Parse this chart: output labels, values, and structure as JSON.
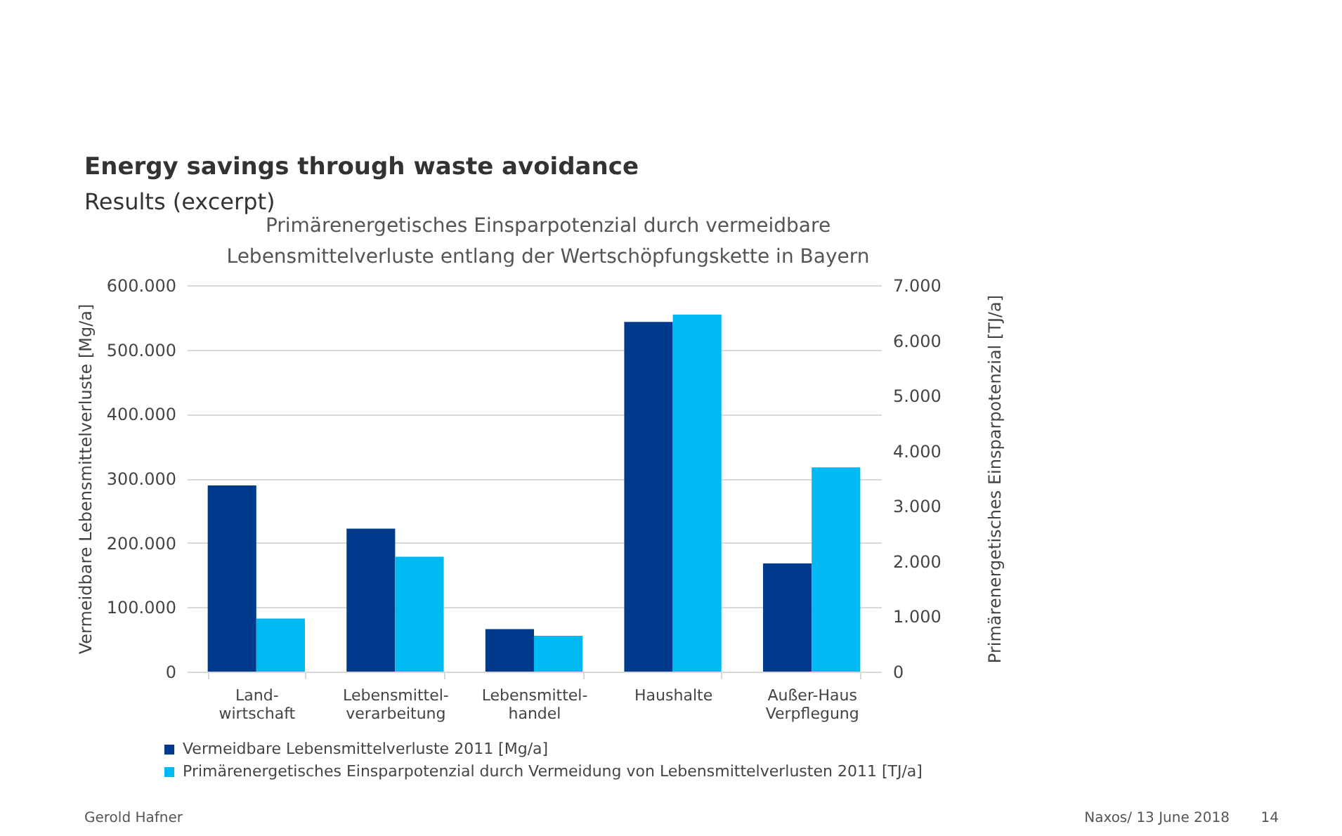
{
  "chart_data": {
    "type": "bar",
    "title": "Energy savings through waste avoidance",
    "subtitle": "Results (excerpt)",
    "categories": [
      "Land-\nwirtschaft",
      "Lebensmittel-\nverarbeitung",
      "Lebensmittel-\nhandel",
      "Haushalte",
      "Außer-Haus\nVerpflegung"
    ],
    "series": [
      {
        "name": "Vermeidbare Lebensmittelverluste 2011 [Mg/a]",
        "color": "#003a8c",
        "values": [
          289000,
          222000,
          66000,
          543000,
          168000
        ]
      },
      {
        "name": "Primärenergetisches Einsparpotenzial durch Vermeidung von Lebensmittelverlusten 2011 [TJ/a]",
        "color": "#00b9f2",
        "axis": "y2",
        "values": [
          960,
          2080,
          650,
          6470,
          3700
        ]
      }
    ],
    "ylabel": "Vermeidbare Lebensmittelverluste [Mg/a]",
    "y2label": "Primärenergetisches Einsparpotenzial [TJ/a]",
    "ylim": [
      0,
      600000
    ],
    "yticks": [
      0,
      {
        "value": 100000,
        "label": "100.000"
      },
      {
        "value": 200000,
        "label": "200.000"
      },
      {
        "value": 300000,
        "label": "300.000"
      },
      {
        "value": 400000,
        "label": "400.000"
      },
      {
        "value": 500000,
        "label": "500.000"
      },
      {
        "value": 600000,
        "label": "600.000"
      }
    ],
    "y2lim": [
      0,
      7000
    ],
    "y2ticks": [
      0,
      {
        "value": 1000,
        "label": "1.000"
      },
      {
        "value": 2000,
        "label": "2.000"
      },
      {
        "value": 3000,
        "label": "3.000"
      },
      {
        "value": 4000,
        "label": "4.000"
      },
      {
        "value": 5000,
        "label": "5.000"
      },
      {
        "value": 6000,
        "label": "6.000"
      },
      {
        "value": 7000,
        "label": "7.000"
      }
    ],
    "grid": "y",
    "legend": "bottom left",
    "annotations": [
      "Primärenergetisches Einsparpotenzial durch vermeidbare\nLebensmittelverluste entlang der Wertschöpfungskette in Bayern",
      "Gerold Hafner",
      "Naxos/ 13 June 2018",
      "14"
    ]
  }
}
